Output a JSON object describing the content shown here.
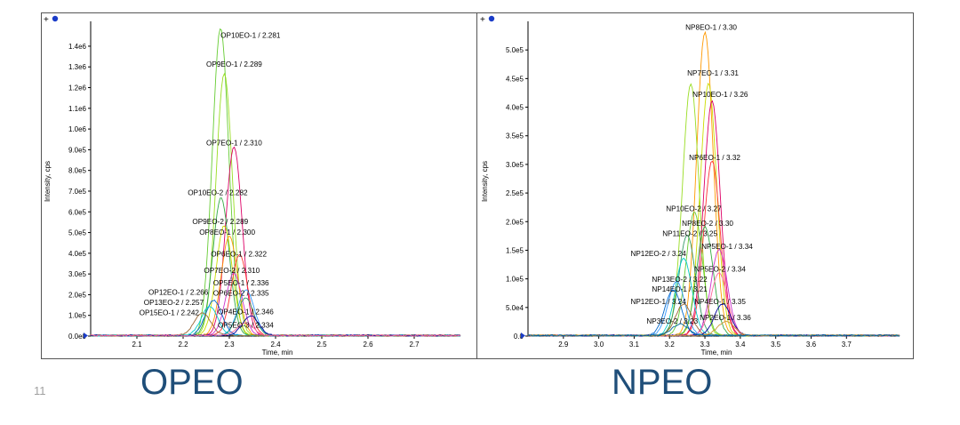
{
  "slide": {
    "number": "11"
  },
  "captions": {
    "left": "OPEO",
    "right": "NPEO"
  },
  "toolbar_glyph": "+",
  "colors": {
    "axis": "#000000",
    "series_palette": [
      "#66cc33",
      "#99dd22",
      "#33aa44",
      "#ccdd00",
      "#ff9900",
      "#ff3333",
      "#dd0066",
      "#cc33cc",
      "#3399ff",
      "#0066cc",
      "#00cccc",
      "#339966",
      "#996633",
      "#000099"
    ]
  },
  "chart_data": [
    {
      "type": "line",
      "title": "",
      "xlabel": "Time, min",
      "ylabel": "Intensity, cps",
      "xlim": [
        2.0,
        2.8
      ],
      "ylim": [
        0,
        1520000.0
      ],
      "xticks": [
        2.1,
        2.2,
        2.3,
        2.4,
        2.5,
        2.6,
        2.7
      ],
      "xtick_labels": [
        "2.1",
        "2.2",
        "2.3",
        "2.4",
        "2.5",
        "2.6",
        "2.7"
      ],
      "yticks": [
        0,
        100000,
        200000,
        300000,
        400000,
        500000,
        600000,
        700000,
        800000,
        900000,
        1000000,
        1100000,
        1200000,
        1300000,
        1400000
      ],
      "ytick_labels": [
        "0.0e0",
        "1.0e5",
        "2.0e5",
        "3.0e5",
        "4.0e5",
        "5.0e5",
        "6.0e5",
        "7.0e5",
        "8.0e5",
        "9.0e5",
        "1.0e6",
        "1.1e6",
        "1.2e6",
        "1.3e6",
        "1.4e6"
      ],
      "grid": false,
      "series": [
        {
          "rt": 2.281,
          "peak": 1485000,
          "color": "#66cc33"
        },
        {
          "rt": 2.289,
          "peak": 1265000,
          "color": "#99dd22"
        },
        {
          "rt": 2.31,
          "peak": 910000,
          "color": "#dd0066"
        },
        {
          "rt": 2.282,
          "peak": 665000,
          "color": "#33aa44"
        },
        {
          "rt": 2.289,
          "peak": 530000,
          "color": "#ccdd00"
        },
        {
          "rt": 2.3,
          "peak": 480000,
          "color": "#ff9900"
        },
        {
          "rt": 2.322,
          "peak": 390000,
          "color": "#ff3333"
        },
        {
          "rt": 2.31,
          "peak": 300000,
          "color": "#cc33cc"
        },
        {
          "rt": 2.336,
          "peak": 220000,
          "color": "#3399ff"
        },
        {
          "rt": 2.335,
          "peak": 180000,
          "color": "#339966"
        },
        {
          "rt": 2.266,
          "peak": 170000,
          "color": "#0066cc"
        },
        {
          "rt": 2.257,
          "peak": 140000,
          "color": "#00cccc"
        },
        {
          "rt": 2.242,
          "peak": 110000,
          "color": "#996633"
        },
        {
          "rt": 2.346,
          "peak": 95000,
          "color": "#000099"
        },
        {
          "rt": 2.334,
          "peak": 60000,
          "color": "#ff6699"
        }
      ],
      "annotations": [
        {
          "text": "OP10EO-1 / 2.281",
          "x": 2.281,
          "y": 1440000
        },
        {
          "text": "OP9EO-1 / 2.289",
          "x": 2.25,
          "y": 1300000
        },
        {
          "text": "OP7EO-1 / 2.310",
          "x": 2.25,
          "y": 920000
        },
        {
          "text": "OP10EO-2 / 2.282",
          "x": 2.21,
          "y": 680000
        },
        {
          "text": "OP9EO-2 / 2.289",
          "x": 2.22,
          "y": 540000
        },
        {
          "text": "OP8EO-1 / 2.300",
          "x": 2.235,
          "y": 490000
        },
        {
          "text": "OP6EO-1 / 2.322",
          "x": 2.26,
          "y": 385000
        },
        {
          "text": "OP7EO-2 / 2.310",
          "x": 2.245,
          "y": 305000
        },
        {
          "text": "OP5EO-1 / 2.336",
          "x": 2.265,
          "y": 245000
        },
        {
          "text": "OP12EO-1 / 2.266",
          "x": 2.125,
          "y": 200000
        },
        {
          "text": "OP6EO-2 / 2.335",
          "x": 2.265,
          "y": 195000
        },
        {
          "text": "OP13EO-2 / 2.257",
          "x": 2.115,
          "y": 150000
        },
        {
          "text": "OP15EO-1 / 2.242",
          "x": 2.105,
          "y": 100000
        },
        {
          "text": "OP4EO-1 / 2.346",
          "x": 2.275,
          "y": 105000
        },
        {
          "text": "OP5EO-3 / 2.334",
          "x": 2.275,
          "y": 40000
        }
      ]
    },
    {
      "type": "line",
      "title": "",
      "xlabel": "Time, min",
      "ylabel": "Intensity, cps",
      "xlim": [
        2.8,
        3.85
      ],
      "ylim": [
        0,
        550000.0
      ],
      "xticks": [
        2.9,
        3.0,
        3.1,
        3.2,
        3.3,
        3.4,
        3.5,
        3.6,
        3.7
      ],
      "xtick_labels": [
        "2.9",
        "3.0",
        "3.1",
        "3.2",
        "3.3",
        "3.4",
        "3.5",
        "3.6",
        "3.7"
      ],
      "yticks": [
        0,
        50000,
        100000,
        150000,
        200000,
        250000,
        300000,
        350000,
        400000,
        450000,
        500000
      ],
      "ytick_labels": [
        "0.0",
        "5.0e4",
        "1.0e5",
        "1.5e5",
        "2.0e5",
        "2.5e5",
        "3.0e5",
        "3.5e5",
        "4.0e5",
        "4.5e5",
        "5.0e5"
      ],
      "grid": false,
      "series": [
        {
          "rt": 3.3,
          "peak": 530000,
          "color": "#ff9900"
        },
        {
          "rt": 3.31,
          "peak": 440000,
          "color": "#ccdd00"
        },
        {
          "rt": 3.26,
          "peak": 440000,
          "color": "#99dd22"
        },
        {
          "rt": 3.32,
          "peak": 410000,
          "color": "#dd0066"
        },
        {
          "rt": 3.32,
          "peak": 305000,
          "color": "#ff3333"
        },
        {
          "rt": 3.27,
          "peak": 215000,
          "color": "#66cc33"
        },
        {
          "rt": 3.3,
          "peak": 190000,
          "color": "#33aa44"
        },
        {
          "rt": 3.25,
          "peak": 175000,
          "color": "#339966"
        },
        {
          "rt": 3.34,
          "peak": 150000,
          "color": "#cc33cc"
        },
        {
          "rt": 3.24,
          "peak": 135000,
          "color": "#00cccc"
        },
        {
          "rt": 3.34,
          "peak": 110000,
          "color": "#ff6699"
        },
        {
          "rt": 3.22,
          "peak": 95000,
          "color": "#3399ff"
        },
        {
          "rt": 3.21,
          "peak": 80000,
          "color": "#0066cc"
        },
        {
          "rt": 3.24,
          "peak": 55000,
          "color": "#996633"
        },
        {
          "rt": 3.35,
          "peak": 55000,
          "color": "#000099"
        },
        {
          "rt": 3.36,
          "peak": 25000,
          "color": "#cc9933"
        },
        {
          "rt": 3.23,
          "peak": 20000,
          "color": "#006699"
        }
      ],
      "annotations": [
        {
          "text": "NP8EO-1 / 3.30",
          "x": 3.245,
          "y": 535000
        },
        {
          "text": "NP7EO-1 / 3.31",
          "x": 3.25,
          "y": 455000
        },
        {
          "text": "NP10EO-1 / 3.26",
          "x": 3.265,
          "y": 418000
        },
        {
          "text": "NP6EO-1 / 3.32",
          "x": 3.255,
          "y": 308000
        },
        {
          "text": "NP10EO-2 / 3.27",
          "x": 3.19,
          "y": 218000
        },
        {
          "text": "NP8EO-2 / 3.30",
          "x": 3.235,
          "y": 193000
        },
        {
          "text": "NP11EO-2 / 3.25",
          "x": 3.18,
          "y": 175000
        },
        {
          "text": "NP5EO-1 / 3.34",
          "x": 3.29,
          "y": 152000
        },
        {
          "text": "NP12EO-2 / 3.24",
          "x": 3.09,
          "y": 140000
        },
        {
          "text": "NP5EO-2 / 3.34",
          "x": 3.27,
          "y": 113000
        },
        {
          "text": "NP13EO-2 / 3.22",
          "x": 3.15,
          "y": 95000
        },
        {
          "text": "NP14EO-1 / 3.21",
          "x": 3.15,
          "y": 78000
        },
        {
          "text": "NP12EO-1 / 3.24",
          "x": 3.09,
          "y": 56000
        },
        {
          "text": "NP4EO-1 / 3.35",
          "x": 3.27,
          "y": 56000
        },
        {
          "text": "NP2EO-1 / 3.36",
          "x": 3.285,
          "y": 28000
        },
        {
          "text": "NP3EO-2 / 3.23",
          "x": 3.135,
          "y": 22000
        }
      ]
    }
  ]
}
